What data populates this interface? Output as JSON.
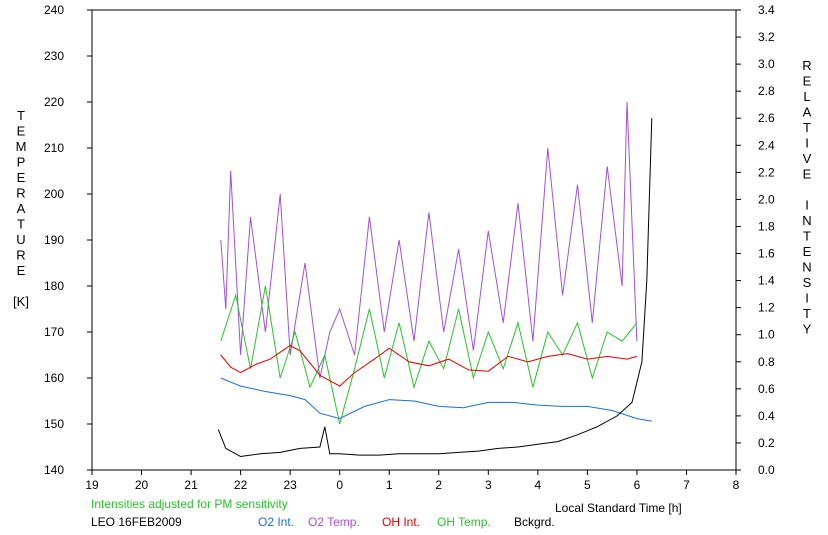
{
  "chart_data": {
    "type": "line",
    "title": "",
    "xlabel": "Local Standard Time [h]",
    "ylabel_left": [
      "T",
      "E",
      "M",
      "P",
      "E",
      "R",
      "A",
      "T",
      "U",
      "R",
      "E",
      "",
      "[K]"
    ],
    "ylabel_right": [
      "R",
      "E",
      "L",
      "A",
      "T",
      "I",
      "V",
      "E",
      "",
      "I",
      "N",
      "T",
      "E",
      "N",
      "S",
      "I",
      "T",
      "Y"
    ],
    "note": "Intensities adjusted for PM sensitivity",
    "station": "LEO 16FEB2009",
    "x_ticks": [
      "19",
      "20",
      "21",
      "22",
      "23",
      "0",
      "1",
      "2",
      "3",
      "4",
      "5",
      "6",
      "7",
      "8"
    ],
    "y_left_ticks": [
      "140",
      "150",
      "160",
      "170",
      "180",
      "190",
      "200",
      "210",
      "220",
      "230",
      "240"
    ],
    "y_right_ticks": [
      "0.0",
      "0.2",
      "0.4",
      "0.6",
      "0.8",
      "1.0",
      "1.2",
      "1.4",
      "1.6",
      "1.8",
      "2.0",
      "2.2",
      "2.4",
      "2.6",
      "2.8",
      "3.0",
      "3.2",
      "3.4"
    ],
    "xlim": [
      19,
      32
    ],
    "ylim_left": [
      140,
      240
    ],
    "ylim_right": [
      0,
      3.4
    ],
    "colors": {
      "o2_int": "#1c6fd6",
      "o2_temp": "#a34fd9",
      "oh_int": "#e00000",
      "oh_temp": "#27c427",
      "bckgrd": "#000000",
      "note": "#27c427"
    },
    "series": [
      {
        "name": "O2 Int.",
        "axis": "right",
        "x": [
          21.6,
          22.0,
          22.5,
          23.0,
          23.3,
          23.6,
          24.0,
          24.5,
          25.0,
          25.5,
          26.0,
          26.5,
          27.0,
          27.5,
          28.0,
          28.5,
          29.0,
          29.5,
          30.0,
          30.3
        ],
        "values": [
          0.68,
          0.62,
          0.58,
          0.55,
          0.52,
          0.42,
          0.38,
          0.47,
          0.52,
          0.51,
          0.47,
          0.46,
          0.5,
          0.5,
          0.48,
          0.47,
          0.47,
          0.44,
          0.38,
          0.36
        ]
      },
      {
        "name": "O2 Temp.",
        "axis": "left",
        "x": [
          21.6,
          21.7,
          21.8,
          22.0,
          22.2,
          22.5,
          22.8,
          23.0,
          23.3,
          23.6,
          23.8,
          24.0,
          24.3,
          24.6,
          24.9,
          25.2,
          25.5,
          25.8,
          26.1,
          26.4,
          26.7,
          27.0,
          27.3,
          27.6,
          27.9,
          28.2,
          28.5,
          28.8,
          29.1,
          29.4,
          29.7,
          29.8,
          30.0
        ],
        "values": [
          190,
          175,
          205,
          165,
          195,
          170,
          200,
          165,
          185,
          160,
          170,
          175,
          165,
          195,
          170,
          190,
          168,
          196,
          170,
          188,
          166,
          192,
          172,
          198,
          168,
          210,
          178,
          202,
          172,
          206,
          180,
          220,
          168
        ]
      },
      {
        "name": "OH Int.",
        "axis": "right",
        "x": [
          21.6,
          21.8,
          22.0,
          22.3,
          22.6,
          23.0,
          23.2,
          23.6,
          24.0,
          24.3,
          24.7,
          25.0,
          25.4,
          25.8,
          26.2,
          26.6,
          27.0,
          27.4,
          27.8,
          28.2,
          28.6,
          29.0,
          29.4,
          29.8,
          30.0
        ],
        "values": [
          0.85,
          0.76,
          0.72,
          0.78,
          0.82,
          0.92,
          0.88,
          0.7,
          0.62,
          0.72,
          0.82,
          0.9,
          0.8,
          0.77,
          0.82,
          0.74,
          0.73,
          0.84,
          0.8,
          0.84,
          0.86,
          0.82,
          0.84,
          0.82,
          0.84
        ]
      },
      {
        "name": "OH Temp.",
        "axis": "left",
        "x": [
          21.6,
          21.9,
          22.2,
          22.5,
          22.8,
          23.1,
          23.4,
          23.7,
          24.0,
          24.3,
          24.6,
          24.9,
          25.2,
          25.5,
          25.8,
          26.1,
          26.4,
          26.7,
          27.0,
          27.3,
          27.6,
          27.9,
          28.2,
          28.5,
          28.8,
          29.1,
          29.4,
          29.7,
          30.0
        ],
        "values": [
          168,
          178,
          162,
          180,
          160,
          170,
          158,
          165,
          150,
          162,
          175,
          160,
          172,
          158,
          168,
          162,
          175,
          160,
          170,
          162,
          172,
          158,
          170,
          165,
          172,
          160,
          170,
          168,
          172
        ]
      },
      {
        "name": "Bckgrd.",
        "axis": "right",
        "x": [
          21.55,
          21.7,
          22.0,
          22.4,
          22.8,
          23.2,
          23.6,
          23.7,
          23.8,
          24.0,
          24.4,
          24.8,
          25.2,
          25.6,
          26.0,
          26.4,
          26.8,
          27.2,
          27.6,
          28.0,
          28.4,
          28.8,
          29.2,
          29.6,
          29.9,
          30.1,
          30.2,
          30.25,
          30.3
        ],
        "values": [
          0.3,
          0.16,
          0.1,
          0.12,
          0.13,
          0.16,
          0.17,
          0.32,
          0.12,
          0.12,
          0.11,
          0.11,
          0.12,
          0.12,
          0.12,
          0.13,
          0.14,
          0.16,
          0.17,
          0.19,
          0.21,
          0.26,
          0.32,
          0.4,
          0.5,
          0.8,
          1.4,
          2.0,
          2.6
        ]
      }
    ],
    "grid": false,
    "legend_position": "bottom"
  }
}
